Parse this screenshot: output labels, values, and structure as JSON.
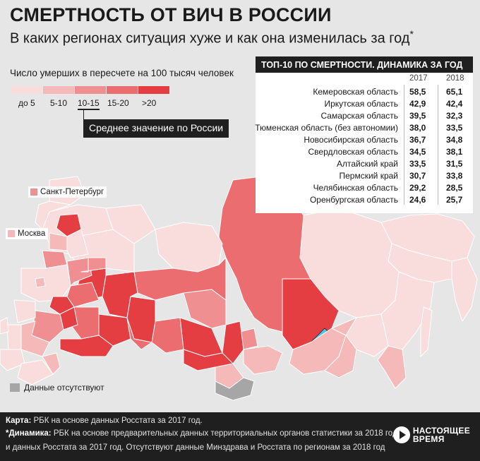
{
  "header": {
    "title": "СМЕРТНОСТЬ ОТ ВИЧ В РОССИИ",
    "subtitle": "В каких регионах ситуация хуже и как она изменилась за год",
    "subtitle_mark": "*"
  },
  "legend": {
    "title": "Число умерших в пересчете на 100 тысяч человек",
    "items": [
      {
        "label": "до 5",
        "color": "#f9dcdc"
      },
      {
        "label": "5-10",
        "color": "#f5b9b9"
      },
      {
        "label": "10-15",
        "color": "#ef8f91"
      },
      {
        "label": "15-20",
        "color": "#eb6d6f"
      },
      {
        "label": ">20",
        "color": "#e43d42"
      }
    ],
    "average_label": "Среднее значение по России"
  },
  "top10": {
    "heading": "ТОП-10 ПО СМЕРТНОСТИ. ДИНАМИКА ЗА ГОД",
    "year1": "2017",
    "year2": "2018",
    "rows": [
      {
        "region": "Кемеровская область",
        "v2017": "58,5",
        "v2018": "65,1"
      },
      {
        "region": "Иркутская область",
        "v2017": "42,9",
        "v2018": "42,4"
      },
      {
        "region": "Самарская область",
        "v2017": "39,5",
        "v2018": "32,3"
      },
      {
        "region": "Тюменская область (без автономии)",
        "v2017": "38,0",
        "v2018": "33,5"
      },
      {
        "region": "Новосибирская область",
        "v2017": "36,7",
        "v2018": "34,8"
      },
      {
        "region": "Свердловская область",
        "v2017": "34,5",
        "v2018": "38,1"
      },
      {
        "region": "Алтайский край",
        "v2017": "33,5",
        "v2018": "31,5"
      },
      {
        "region": "Пермский край",
        "v2017": "30,7",
        "v2018": "33,8"
      },
      {
        "region": "Челябинская область",
        "v2017": "29,2",
        "v2018": "28,5"
      },
      {
        "region": "Оренбургская область",
        "v2017": "24,6",
        "v2018": "25,7"
      }
    ]
  },
  "map": {
    "cities": [
      {
        "name": "Санкт-Петербург",
        "color": "#ef8f91"
      },
      {
        "name": "Москва",
        "color": "#f5b9b9"
      }
    ],
    "nodata_label": "Данные отсутствуют",
    "nodata_color": "#a6a6a6"
  },
  "footer": {
    "map_label": "Карта:",
    "map_text": " РБК на основе данных Росстата за 2017 год.",
    "dyn_label": "*Динамика:",
    "dyn_text": " РБК на основе предварительных данных территориальных органов статистики за 2018 год",
    "dyn_text2": "и данных Росстата за 2017 год. Отсутствуют данные Минздрава и Росстата по регионам за 2018 год",
    "logo_line1": "НАСТОЯЩЕЕ",
    "logo_line2": "ВРЕМЯ"
  }
}
